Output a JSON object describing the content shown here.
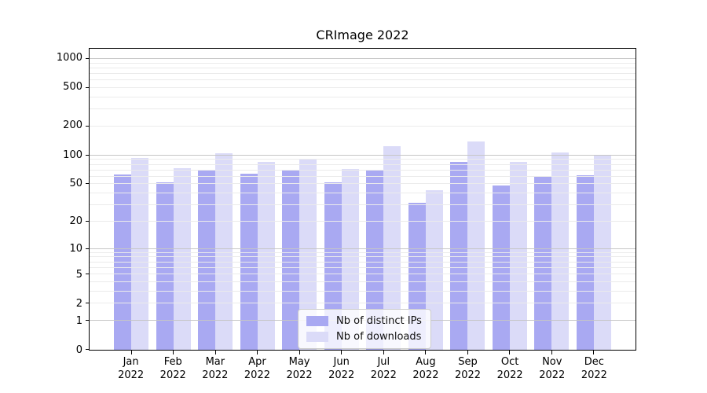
{
  "chart_data": {
    "type": "bar",
    "title": "CRImage 2022",
    "categories": [
      "Jan 2022",
      "Feb 2022",
      "Mar 2022",
      "Apr 2022",
      "May 2022",
      "Jun 2022",
      "Jul 2022",
      "Aug 2022",
      "Sep 2022",
      "Oct 2022",
      "Nov 2022",
      "Dec 2022"
    ],
    "series": [
      {
        "name": "Nb of distinct IPs",
        "color": "#a9a9f2",
        "values": [
          63,
          52,
          69,
          65,
          70,
          52,
          69,
          32,
          86,
          49,
          61,
          62
        ]
      },
      {
        "name": "Nb of downloads",
        "color": "#dbdbf8",
        "values": [
          94,
          74,
          105,
          86,
          90,
          73,
          125,
          43,
          140,
          86,
          107,
          99
        ]
      }
    ],
    "y_axis": {
      "scale": "log1p",
      "max": 1275,
      "ticks": [
        0,
        1,
        2,
        5,
        10,
        20,
        50,
        100,
        200,
        500,
        1000
      ],
      "major_gridlines": [
        1,
        10,
        100,
        1000
      ],
      "minor_gridlines": [
        3,
        4,
        6,
        7,
        8,
        9,
        30,
        40,
        60,
        70,
        80,
        90,
        300,
        400,
        600,
        700,
        800,
        900
      ]
    },
    "legend_position": "inside-bottom-center",
    "grid": true,
    "styles": {
      "major_grid_color": "#c6c6c6",
      "minor_grid_color": "#ebebeb",
      "axis_color": "#000000"
    }
  }
}
